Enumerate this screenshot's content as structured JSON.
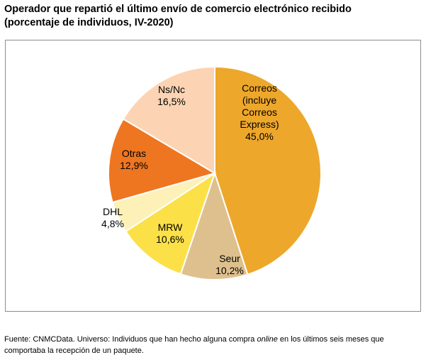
{
  "title": {
    "line1": "Operador que repartió el último envío de comercio electrónico recibido",
    "line2": "(porcentaje de individuos, IV-2020)"
  },
  "chart_data": {
    "type": "pie",
    "title": "Operador que repartió el último envío de comercio electrónico recibido (porcentaje de individuos, IV-2020)",
    "slices": [
      {
        "label": "Correos (incluye Correos Express)",
        "label_lines": [
          "Correos",
          "(incluye",
          "Correos",
          "Express)"
        ],
        "value": 45.0,
        "value_text": "45,0%",
        "color": "#EDA72B"
      },
      {
        "label": "Seur",
        "label_lines": [
          "Seur"
        ],
        "value": 10.2,
        "value_text": "10,2%",
        "color": "#DEC08E"
      },
      {
        "label": "MRW",
        "label_lines": [
          "MRW"
        ],
        "value": 10.6,
        "value_text": "10,6%",
        "color": "#FCE047"
      },
      {
        "label": "DHL",
        "label_lines": [
          "DHL"
        ],
        "value": 4.8,
        "value_text": "4,8%",
        "color": "#FDF1B8"
      },
      {
        "label": "Otras",
        "label_lines": [
          "Otras"
        ],
        "value": 12.9,
        "value_text": "12,9%",
        "color": "#EE7620"
      },
      {
        "label": "Ns/Nc",
        "label_lines": [
          "Ns/Nc"
        ],
        "value": 16.5,
        "value_text": "16,5%",
        "color": "#FCD4B3"
      }
    ],
    "start": "12 o'clock",
    "direction": "clockwise"
  },
  "source": {
    "prefix": "Fuente: CNMCData. Universo: Individuos que han hecho alguna compra ",
    "italic": "online",
    "suffix": " en los últimos seis meses que comportaba la recepción de un paquete."
  }
}
